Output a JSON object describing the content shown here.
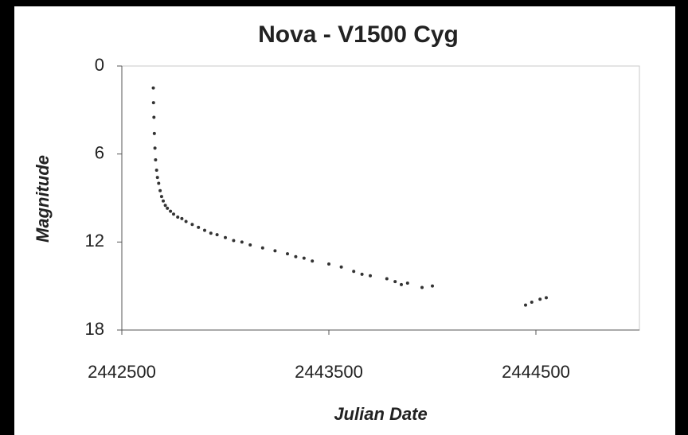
{
  "chart_data": {
    "type": "scatter",
    "title": "Nova - V1500 Cyg",
    "x_label": "Julian Date",
    "y_label": "Magnitude",
    "x": [
      2442652,
      2442653,
      2442655,
      2442657,
      2442660,
      2442663,
      2442668,
      2442672,
      2442678,
      2442685,
      2442692,
      2442700,
      2442710,
      2442720,
      2442735,
      2442750,
      2442770,
      2442790,
      2442810,
      2442840,
      2442870,
      2442900,
      2442930,
      2442960,
      2443000,
      2443040,
      2443080,
      2443120,
      2443180,
      2443240,
      2443300,
      2443340,
      2443380,
      2443420,
      2443500,
      2443560,
      2443620,
      2443660,
      2443700,
      2443780,
      2443820,
      2443850,
      2443880,
      2443950,
      2444000,
      2444450,
      2444480,
      2444520,
      2444550
    ],
    "values": [
      1.5,
      2.5,
      3.5,
      4.6,
      5.6,
      6.4,
      7.1,
      7.6,
      8.0,
      8.5,
      8.9,
      9.2,
      9.5,
      9.7,
      9.9,
      10.1,
      10.3,
      10.4,
      10.6,
      10.8,
      11.0,
      11.2,
      11.4,
      11.5,
      11.7,
      11.9,
      12.0,
      12.2,
      12.4,
      12.6,
      12.8,
      13.0,
      13.1,
      13.3,
      13.5,
      13.7,
      14.0,
      14.2,
      14.3,
      14.5,
      14.7,
      14.9,
      14.8,
      15.1,
      15.0,
      16.3,
      16.1,
      15.9,
      15.8
    ],
    "color": "#333333",
    "xlim": [
      2442500,
      2445000
    ],
    "ylim": [
      0,
      18
    ],
    "y_inverted": true,
    "xticks": [
      2442500,
      2443500,
      2444500
    ],
    "yticks": [
      0,
      6,
      12,
      18
    ]
  }
}
